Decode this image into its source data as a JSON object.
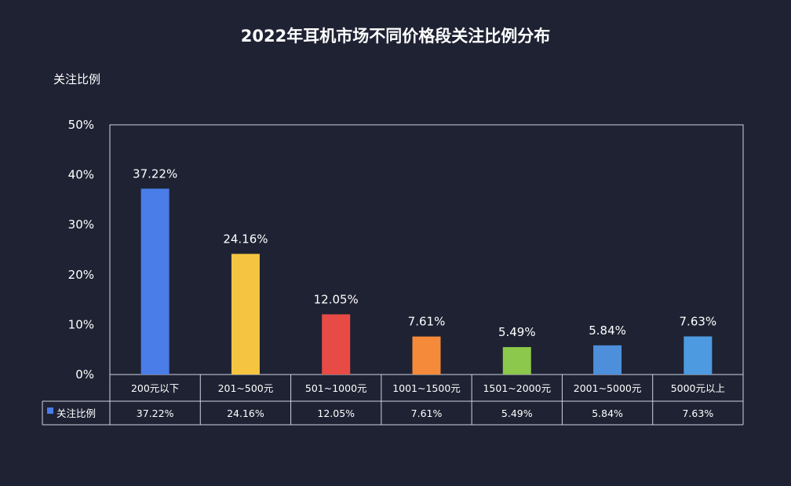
{
  "chart_data": {
    "type": "bar",
    "title": "2022年耳机市场不同价格段关注比例分布",
    "ylabel": "关注比例",
    "ylim": [
      0,
      50
    ],
    "yticks": [
      "0%",
      "10%",
      "20%",
      "30%",
      "40%",
      "50%"
    ],
    "categories": [
      "200元以下",
      "201~500元",
      "501~1000元",
      "1001~1500元",
      "1501~2000元",
      "2001~5000元",
      "5000元以上"
    ],
    "series": [
      {
        "name": "关注比例",
        "values": [
          37.22,
          24.16,
          12.05,
          7.61,
          5.49,
          5.84,
          7.63
        ],
        "labels": [
          "37.22%",
          "24.16%",
          "12.05%",
          "7.61%",
          "5.49%",
          "5.84%",
          "7.63%"
        ],
        "colors": [
          "#4a7de8",
          "#f5c542",
          "#e84b45",
          "#f58a3a",
          "#8cc84b",
          "#4d8fdb",
          "#4d9ae0"
        ]
      }
    ],
    "grid": false,
    "legend": "data-table-left",
    "legend_color": "#4a7de8"
  }
}
